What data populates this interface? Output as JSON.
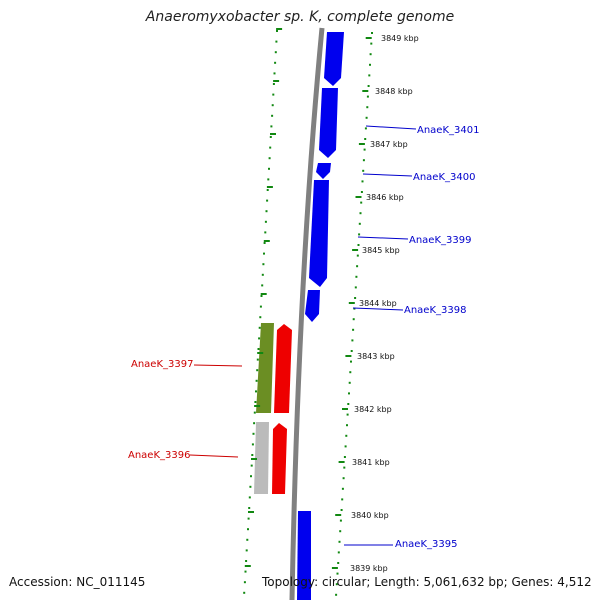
{
  "title": "Anaeromyxobacter sp. K, complete genome",
  "footer": {
    "accession": "Accession: NC_011145",
    "topology": "Topology: circular; Length: 5,061,632 bp; Genes: 4,512"
  },
  "colors": {
    "forward_cds": "#0000ee",
    "reverse_cds": "#ee0000",
    "rna_gene": "#6b8e23",
    "other_gene": "#bbbbbb",
    "backbone": "#808080",
    "ticks": "#118811"
  },
  "ticks": [
    "3849 kbp",
    "3848 kbp",
    "3847 kbp",
    "3846 kbp",
    "3845 kbp",
    "3844 kbp",
    "3843 kbp",
    "3842 kbp",
    "3841 kbp",
    "3840 kbp",
    "3839 kbp"
  ],
  "gene_labels": [
    {
      "text": "AnaeK_3401",
      "strand": "forward"
    },
    {
      "text": "AnaeK_3400",
      "strand": "forward"
    },
    {
      "text": "AnaeK_3399",
      "strand": "forward"
    },
    {
      "text": "AnaeK_3398",
      "strand": "forward"
    },
    {
      "text": "AnaeK_3397",
      "strand": "reverse"
    },
    {
      "text": "AnaeK_3396",
      "strand": "reverse"
    },
    {
      "text": "AnaeK_3395",
      "strand": "forward"
    }
  ]
}
